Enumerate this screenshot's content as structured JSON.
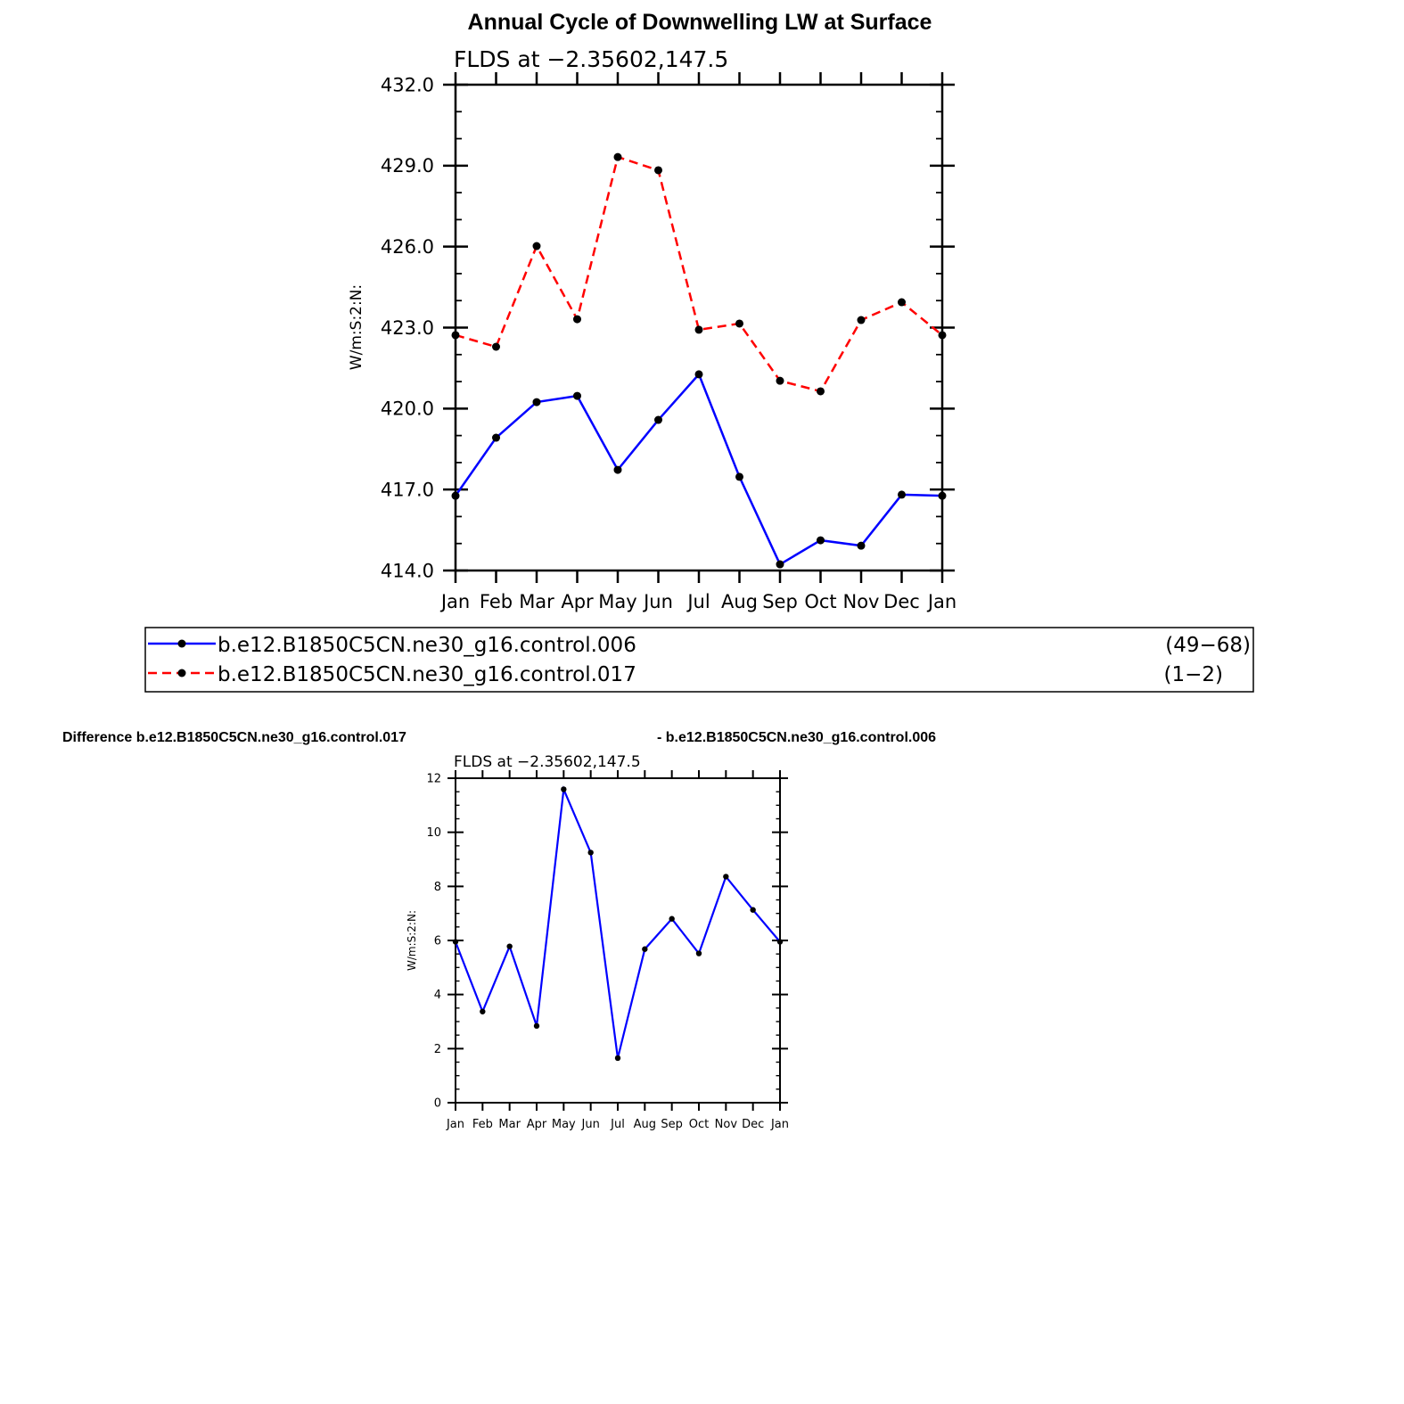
{
  "chart_data": [
    {
      "type": "line",
      "title": "Annual Cycle of Downwelling LW at Surface",
      "subtitle": "FLDS at −2.35602,147.5",
      "xlabel": "",
      "ylabel": "W/m:S:2:N:",
      "categories": [
        "Jan",
        "Feb",
        "Mar",
        "Apr",
        "May",
        "Jun",
        "Jul",
        "Aug",
        "Sep",
        "Oct",
        "Nov",
        "Dec",
        "Jan"
      ],
      "ylim": [
        414,
        432
      ],
      "yticks": [
        "414.0",
        "417.0",
        "420.0",
        "423.0",
        "426.0",
        "429.0",
        "432.0"
      ],
      "series": [
        {
          "name": "b.e12.B1850C5CN.ne30_g16.control.006",
          "years": "(49−68)",
          "color": "#0000ff",
          "dash": "solid",
          "values": [
            416.77,
            418.92,
            420.24,
            420.47,
            417.73,
            419.58,
            421.27,
            417.47,
            414.23,
            415.12,
            414.92,
            416.81,
            416.77
          ]
        },
        {
          "name": "b.e12.B1850C5CN.ne30_g16.control.017",
          "years": "(1−2)",
          "color": "#ff0000",
          "dash": "dashed",
          "values": [
            422.72,
            422.29,
            426.02,
            423.31,
            429.32,
            428.83,
            422.92,
            423.15,
            421.03,
            420.64,
            423.28,
            423.94,
            422.72
          ]
        }
      ],
      "legend": "bottom"
    },
    {
      "type": "line",
      "title_left": "Difference b.e12.B1850C5CN.ne30_g16.control.017",
      "title_right": "- b.e12.B1850C5CN.ne30_g16.control.006",
      "subtitle": "FLDS at −2.35602,147.5",
      "ylabel": "W/m:S:2:N:",
      "categories": [
        "Jan",
        "Feb",
        "Mar",
        "Apr",
        "May",
        "Jun",
        "Jul",
        "Aug",
        "Sep",
        "Oct",
        "Nov",
        "Dec",
        "Jan"
      ],
      "ylim": [
        0,
        12
      ],
      "yticks": [
        "0",
        "2",
        "4",
        "6",
        "8",
        "10",
        "12"
      ],
      "series": [
        {
          "color": "#0000ff",
          "values": [
            5.95,
            3.37,
            5.78,
            2.84,
            11.59,
            9.25,
            1.65,
            5.68,
            6.8,
            5.52,
            8.36,
            7.13,
            5.95
          ]
        }
      ]
    }
  ]
}
